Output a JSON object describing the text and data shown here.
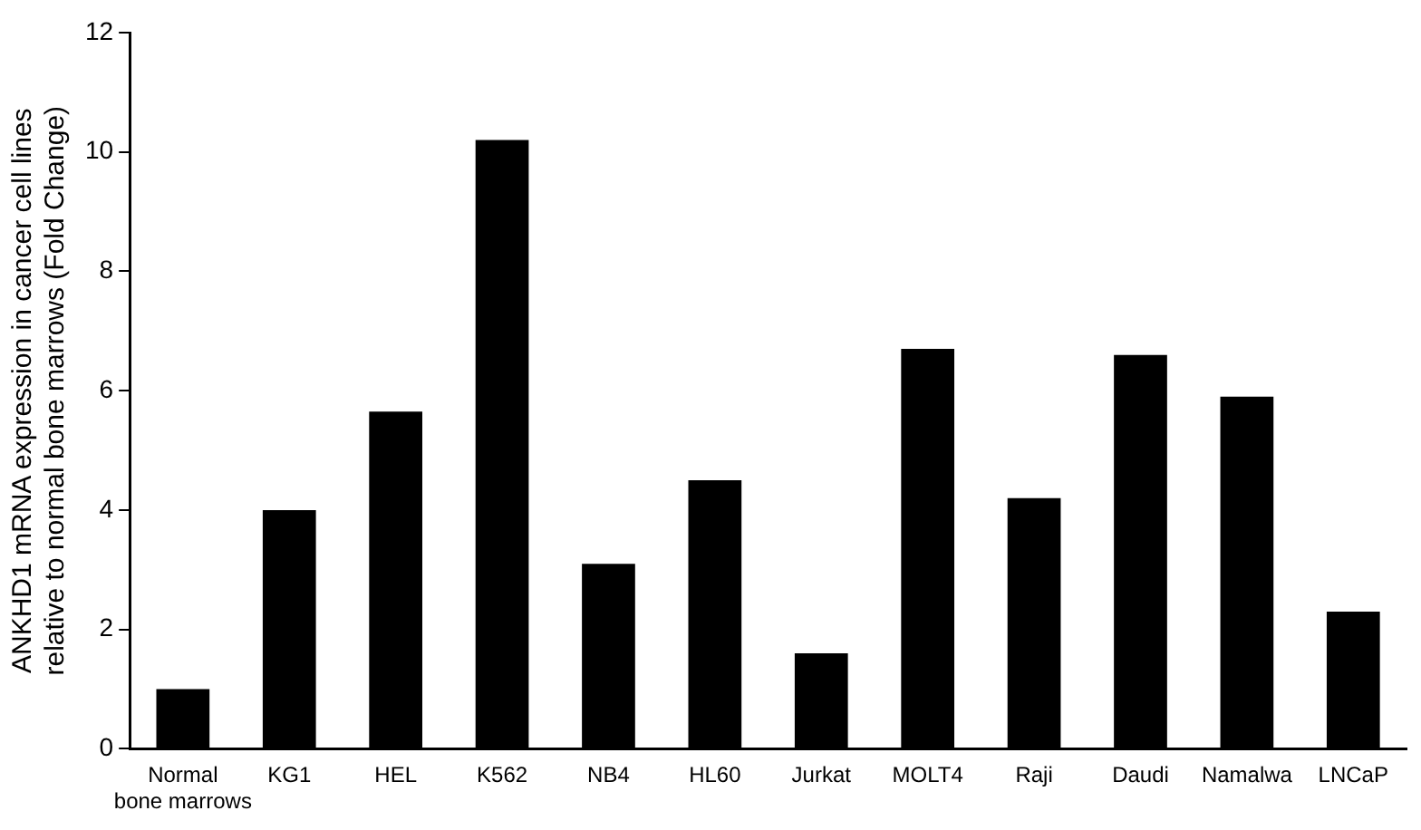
{
  "chart_data": {
    "type": "bar",
    "ylabel": "ANKHD1 mRNA expression in cancer cell lines\nrelative to normal bone marrows (Fold Change)",
    "categories": [
      "Normal bone marrows",
      "KG1",
      "HEL",
      "K562",
      "NB4",
      "HL60",
      "Jurkat",
      "MOLT4",
      "Raji",
      "Daudi",
      "Namalwa",
      "LNCaP"
    ],
    "values": [
      1.0,
      4.0,
      5.65,
      10.2,
      3.1,
      4.5,
      1.6,
      6.7,
      4.2,
      6.6,
      5.9,
      2.3
    ],
    "color": "#000000",
    "ylim": [
      0,
      12
    ],
    "yticks": [
      0,
      2,
      4,
      6,
      8,
      10,
      12
    ],
    "grid": false,
    "legend": false
  }
}
